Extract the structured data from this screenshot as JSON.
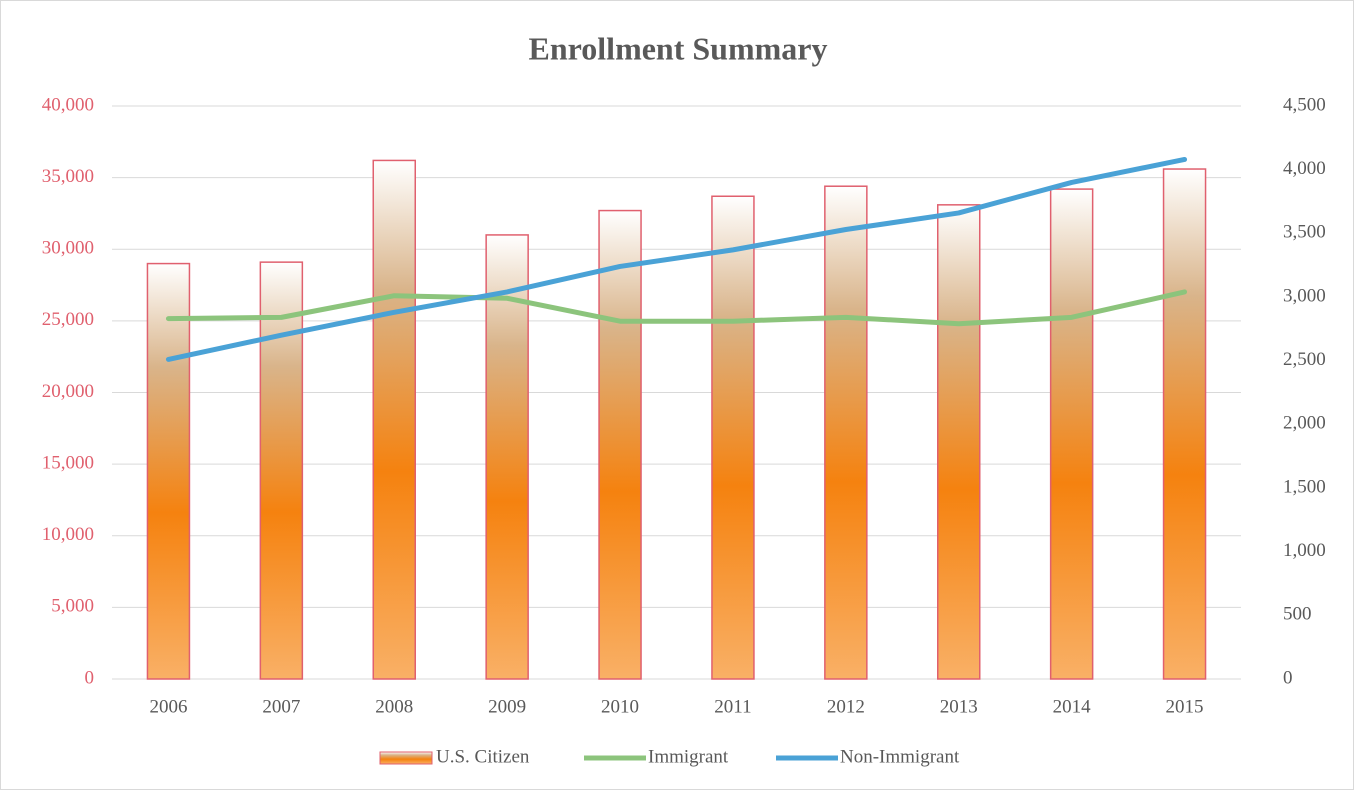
{
  "chart_data": {
    "type": "bar",
    "title": "Enrollment Summary",
    "categories": [
      "2006",
      "2007",
      "2008",
      "2009",
      "2010",
      "2011",
      "2012",
      "2013",
      "2014",
      "2015"
    ],
    "series": [
      {
        "name": "U.S. Citizen",
        "type": "bar",
        "color": "#f5820f",
        "values": [
          29000,
          29100,
          36200,
          31000,
          32700,
          33700,
          34400,
          33100,
          34200,
          35600
        ]
      },
      {
        "name": "Immigrant",
        "type": "line",
        "axis": "y2",
        "color": "#8cc47c",
        "values": [
          2830,
          2840,
          3010,
          2990,
          2810,
          2810,
          2840,
          2790,
          2840,
          3040
        ]
      },
      {
        "name": "Non-Immigrant",
        "type": "line",
        "axis": "y2",
        "color": "#4aa2d6",
        "values": [
          2510,
          2700,
          2880,
          3040,
          3240,
          3370,
          3530,
          3660,
          3900,
          4080
        ]
      }
    ],
    "ylim": [
      0,
      40000
    ],
    "yticks": [
      0,
      {
        "value": 5000,
        "label": "5,000"
      },
      {
        "value": 10000,
        "label": "10,000"
      },
      {
        "value": 15000,
        "label": "15,000"
      },
      {
        "value": 20000,
        "label": "20,000"
      },
      {
        "value": 25000,
        "label": "25,000"
      },
      {
        "value": 30000,
        "label": "30,000"
      },
      {
        "value": 35000,
        "label": "35,000"
      },
      {
        "value": 40000,
        "label": "40,000"
      }
    ],
    "y2lim": [
      0,
      4500
    ],
    "y2ticks": [
      0,
      500,
      {
        "value": 1000,
        "label": "1,000"
      },
      {
        "value": 1500,
        "label": "1,500"
      },
      {
        "value": 2000,
        "label": "2,000"
      },
      {
        "value": 2500,
        "label": "2,500"
      },
      {
        "value": 3000,
        "label": "3,000"
      },
      {
        "value": 3500,
        "label": "3,500"
      },
      {
        "value": 4000,
        "label": "4,000"
      },
      {
        "value": 4500,
        "label": "4,500"
      }
    ],
    "grid": true,
    "legend": "bottom"
  }
}
